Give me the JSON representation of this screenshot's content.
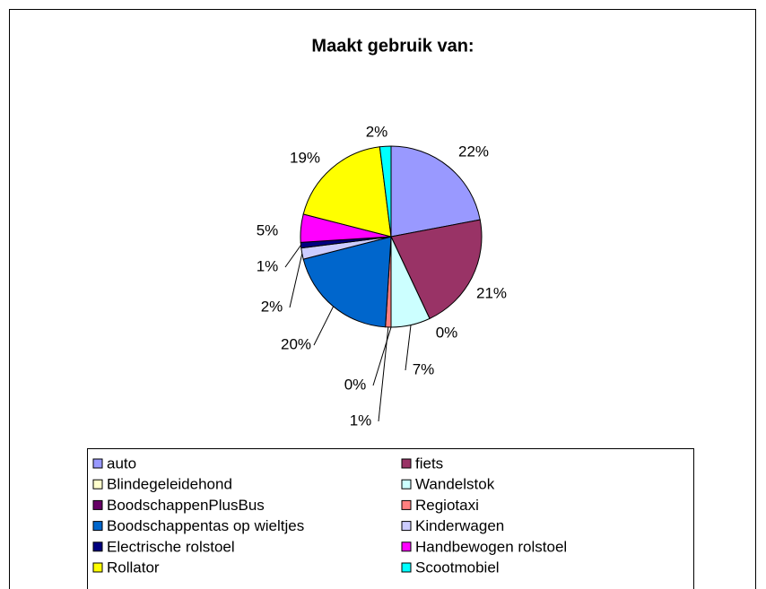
{
  "chart_data": {
    "type": "pie",
    "title": "Maakt gebruik van:",
    "categories": [
      "auto",
      "fiets",
      "Blindegeleidehond",
      "Wandelstok",
      "BoodschappenPlusBus",
      "Regiotaxi",
      "Boodschappentas op wieltjes",
      "Kinderwagen",
      "Electrische rolstoel",
      "Handbewogen rolstoel",
      "Rollator",
      "Scootmobiel"
    ],
    "values": [
      22,
      21,
      0,
      7,
      0,
      1,
      20,
      2,
      1,
      5,
      19,
      2
    ],
    "value_labels": [
      "22%",
      "21%",
      "0%",
      "7%",
      "0%",
      "1%",
      "20%",
      "2%",
      "1%",
      "5%",
      "19%",
      "2%"
    ],
    "colors": [
      "#9999FF",
      "#993366",
      "#FFFFCC",
      "#CCFFFF",
      "#660066",
      "#FF8080",
      "#0066CC",
      "#CCCCFF",
      "#000080",
      "#FF00FF",
      "#FFFF00",
      "#00FFFF"
    ],
    "legend": "bottom"
  }
}
